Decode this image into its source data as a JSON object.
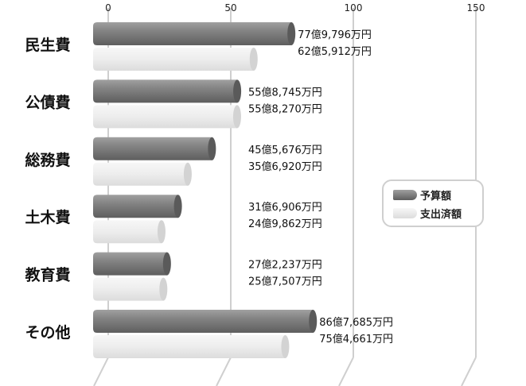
{
  "chart_data": {
    "type": "bar",
    "orientation": "horizontal",
    "style": "3d-cylinder",
    "categories": [
      "民生費",
      "公債費",
      "総務費",
      "土木費",
      "教育費",
      "その他"
    ],
    "series": [
      {
        "name": "予算額",
        "color": "#7d7d7d",
        "values": [
          77.9796,
          55.8745,
          45.5676,
          31.6906,
          27.2237,
          86.7685
        ],
        "labels": [
          "77億9,796万円",
          "55億8,745万円",
          "45億5,676万円",
          "31億6,906万円",
          "27億2,237万円",
          "86億7,685万円"
        ]
      },
      {
        "name": "支出済額",
        "color": "#ececec",
        "values": [
          62.5912,
          55.827,
          35.692,
          24.9862,
          25.7507,
          75.4661
        ],
        "labels": [
          "62億5,912万円",
          "55億8,270万円",
          "35億6,920万円",
          "24億9,862万円",
          "25億7,507万円",
          "75億4,661万円"
        ]
      }
    ],
    "xlim": [
      0,
      150
    ],
    "xticks": [
      "0",
      "50",
      "100",
      "150"
    ],
    "grid": true,
    "legend_position": "right"
  }
}
